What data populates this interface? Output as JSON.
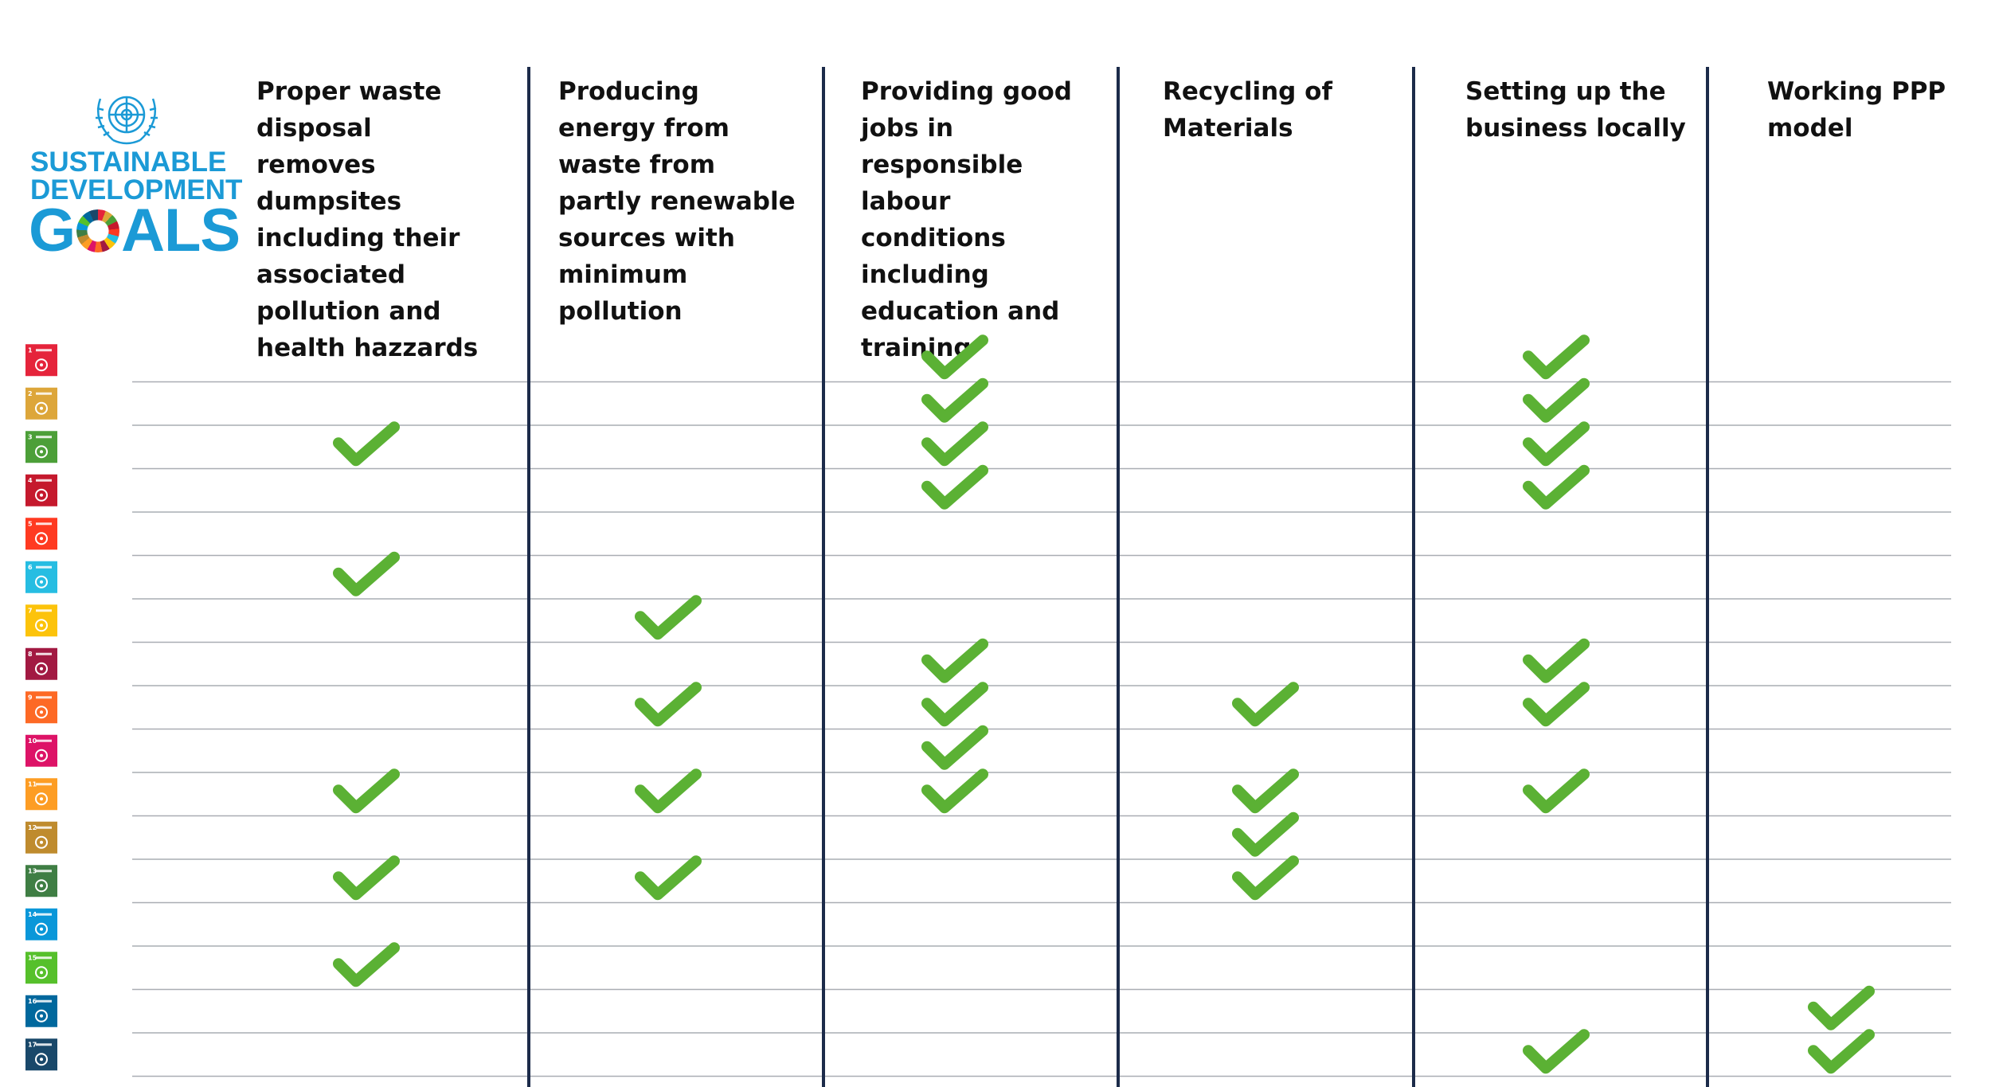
{
  "logo": {
    "line1": "SUSTAINABLE",
    "line2": "DEVELOPMENT",
    "line3_before": "G",
    "line3_after": "ALS"
  },
  "columns": [
    {
      "id": "waste-disposal",
      "label": "Proper waste disposal removes dumpsites including their associated pollution and health hazzards"
    },
    {
      "id": "energy",
      "label": "Producing energy from waste from partly renewable sources with minimum pollution"
    },
    {
      "id": "jobs",
      "label": "Providing good jobs in responsible labour conditions including education and training"
    },
    {
      "id": "recycling",
      "label": "Recycling of Materials"
    },
    {
      "id": "local-business",
      "label": "Setting up the business locally"
    },
    {
      "id": "ppp",
      "label": "Working PPP model"
    }
  ],
  "sdgs": [
    {
      "n": "1",
      "color": "#e5243b",
      "icon": "family-icon"
    },
    {
      "n": "2",
      "color": "#dda63a",
      "icon": "bowl-icon"
    },
    {
      "n": "3",
      "color": "#4c9f38",
      "icon": "heartbeat-icon"
    },
    {
      "n": "4",
      "color": "#c5192d",
      "icon": "book-icon"
    },
    {
      "n": "5",
      "color": "#ff3a21",
      "icon": "gender-icon"
    },
    {
      "n": "6",
      "color": "#26bde2",
      "icon": "water-drop-icon"
    },
    {
      "n": "7",
      "color": "#fcc30b",
      "icon": "sun-icon"
    },
    {
      "n": "8",
      "color": "#a21942",
      "icon": "growth-chart-icon"
    },
    {
      "n": "9",
      "color": "#fd6925",
      "icon": "cubes-icon"
    },
    {
      "n": "10",
      "color": "#dd1367",
      "icon": "equality-icon"
    },
    {
      "n": "11",
      "color": "#fd9d24",
      "icon": "buildings-icon"
    },
    {
      "n": "12",
      "color": "#bf8b2e",
      "icon": "infinity-icon"
    },
    {
      "n": "13",
      "color": "#3f7e44",
      "icon": "eye-globe-icon"
    },
    {
      "n": "14",
      "color": "#0a97d9",
      "icon": "waves-icon"
    },
    {
      "n": "15",
      "color": "#56c02b",
      "icon": "tree-icon"
    },
    {
      "n": "16",
      "color": "#00689d",
      "icon": "dove-icon"
    },
    {
      "n": "17",
      "color": "#19486a",
      "icon": "flower-icon"
    }
  ],
  "checks": {
    "waste-disposal": [
      3,
      6,
      11,
      13,
      15
    ],
    "energy": [
      7,
      9,
      11,
      13
    ],
    "jobs": [
      1,
      2,
      3,
      4,
      8,
      9,
      10,
      11
    ],
    "recycling": [
      9,
      11,
      12,
      13
    ],
    "local-business": [
      1,
      2,
      3,
      4,
      8,
      9,
      11,
      17
    ],
    "ppp": [
      16,
      17
    ]
  },
  "colors": {
    "check": "#5bb134",
    "divider": "#1c2b4a",
    "rowline": "#a9adb3",
    "brand": "#1b9ad6"
  }
}
